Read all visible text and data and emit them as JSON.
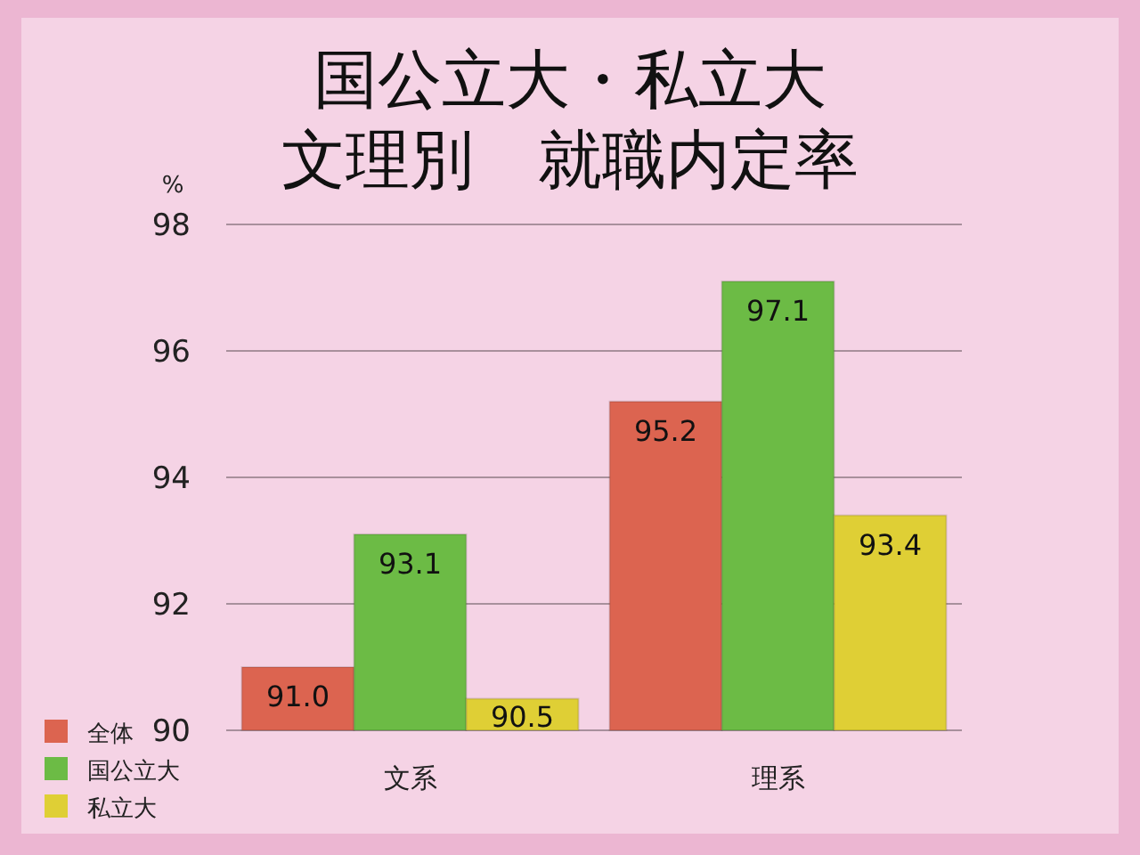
{
  "chart_data": {
    "type": "bar",
    "title": "国公立大・私立大",
    "subtitle": "文理別　就職内定率",
    "ylabel": "%",
    "categories": [
      "文系",
      "理系"
    ],
    "series": [
      {
        "name": "全体",
        "color": "#dc6450",
        "values": [
          91.0,
          95.2
        ],
        "value_labels": [
          "91.0",
          "95.2"
        ]
      },
      {
        "name": "国公立大",
        "color": "#6cbb45",
        "values": [
          93.1,
          97.1
        ],
        "value_labels": [
          "93.1",
          "97.1"
        ]
      },
      {
        "name": "私立大",
        "color": "#dfcf35",
        "values": [
          90.5,
          93.4
        ],
        "value_labels": [
          "90.5",
          "93.4"
        ]
      }
    ],
    "ylim": [
      90,
      98
    ],
    "yticks": [
      90,
      92,
      94,
      96,
      98
    ],
    "grid": "y",
    "legend": "bottom left"
  }
}
